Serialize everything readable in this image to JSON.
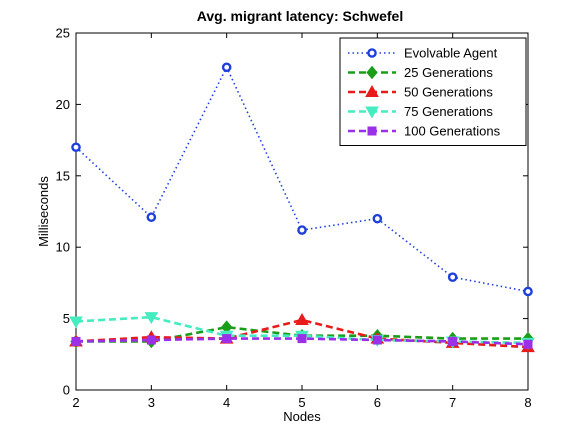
{
  "chart_data": {
    "type": "line",
    "title": "Avg. migrant latency: Schwefel",
    "xlabel": "Nodes",
    "ylabel": "Milliseconds",
    "xlim": [
      2,
      8
    ],
    "ylim": [
      0,
      25
    ],
    "xticks": [
      2,
      3,
      4,
      5,
      6,
      7,
      8
    ],
    "yticks": [
      0,
      5,
      10,
      15,
      20,
      25
    ],
    "grid": false,
    "legend_position": "top-right",
    "x": [
      2,
      3,
      4,
      5,
      6,
      7,
      8
    ],
    "series": [
      {
        "name": "Evolvable Agent",
        "values": [
          17.0,
          12.1,
          22.6,
          11.2,
          12.0,
          7.9,
          6.9
        ],
        "color": "#1f3fdc",
        "dash": "dotted",
        "marker": "circle"
      },
      {
        "name": "25 Generations",
        "values": [
          3.4,
          3.4,
          4.4,
          3.8,
          3.8,
          3.6,
          3.6
        ],
        "color": "#1a9e1a",
        "dash": "dashed",
        "marker": "diamond"
      },
      {
        "name": "50 Generations",
        "values": [
          3.4,
          3.7,
          3.6,
          4.9,
          3.6,
          3.3,
          3.0
        ],
        "color": "#e81b1b",
        "dash": "dashed",
        "marker": "triangle-up"
      },
      {
        "name": "75 Generations",
        "values": [
          4.8,
          5.1,
          3.8,
          3.8,
          3.5,
          3.4,
          3.3
        ],
        "color": "#44ecc0",
        "dash": "dashed",
        "marker": "triangle-down"
      },
      {
        "name": "100 Generations",
        "values": [
          3.4,
          3.5,
          3.6,
          3.6,
          3.5,
          3.4,
          3.2
        ],
        "color": "#9b30e8",
        "dash": "dashed",
        "marker": "square"
      }
    ]
  }
}
